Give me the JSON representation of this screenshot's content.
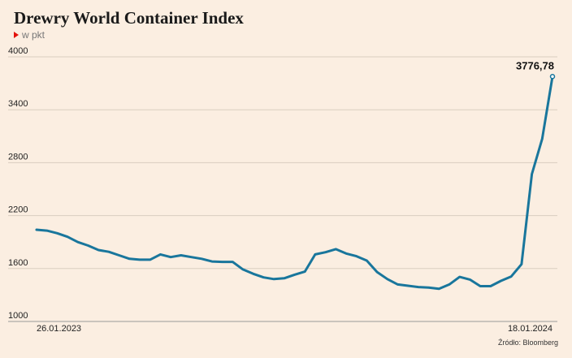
{
  "title": "Drewry World Container Index",
  "subtitle": "w pkt",
  "source": "Źródło: Bloomberg",
  "colors": {
    "line": "#19769c",
    "grid": "#d9cdc0",
    "background": "#fbeee1",
    "marker": "#e3120b"
  },
  "chart_data": {
    "type": "line",
    "title": "Drewry World Container Index",
    "subtitle": "w pkt",
    "ylim": [
      1000,
      4000
    ],
    "yticks": [
      1000,
      1600,
      2200,
      2800,
      3400,
      4000
    ],
    "x_start_label": "26.01.2023",
    "x_end_label": "18.01.2024",
    "grid": true,
    "last_value_label": "3776,78",
    "series": [
      {
        "values": [
          2040,
          2030,
          2000,
          1960,
          1900,
          1860,
          1810,
          1790,
          1750,
          1710,
          1700,
          1700,
          1760,
          1730,
          1750,
          1730,
          1710,
          1680,
          1675,
          1675,
          1590,
          1540,
          1500,
          1480,
          1490,
          1530,
          1565,
          1760,
          1785,
          1820,
          1770,
          1740,
          1690,
          1560,
          1480,
          1420,
          1405,
          1390,
          1385,
          1370,
          1420,
          1505,
          1475,
          1400,
          1400,
          1460,
          1510,
          1650,
          2670,
          3070,
          3776.78
        ]
      }
    ]
  }
}
